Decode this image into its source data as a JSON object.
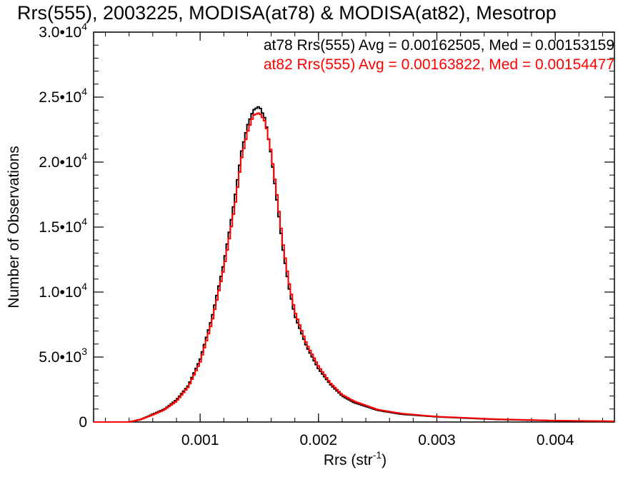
{
  "chart_data": {
    "type": "line",
    "title": "Rrs(555), 2003225, MODISA(at78) & MODISA(at82), Mesotrop",
    "xlabel": "Rrs (str",
    "xlabel_sup": "-1",
    "xlabel_close": ")",
    "ylabel": "Number of Observations",
    "xlim": [
      0.0001,
      0.0045
    ],
    "ylim": [
      0,
      30000
    ],
    "x_ticks": [
      {
        "value": 0.001,
        "label": "0.001"
      },
      {
        "value": 0.002,
        "label": "0.002"
      },
      {
        "value": 0.003,
        "label": "0.003"
      },
      {
        "value": 0.004,
        "label": "0.004"
      }
    ],
    "y_ticks": [
      {
        "value": 0,
        "mant": "0",
        "exp": ""
      },
      {
        "value": 5000,
        "mant": "5.0•10",
        "exp": "3"
      },
      {
        "value": 10000,
        "mant": "1.0•10",
        "exp": "4"
      },
      {
        "value": 15000,
        "mant": "1.5•10",
        "exp": "4"
      },
      {
        "value": 20000,
        "mant": "2.0•10",
        "exp": "4"
      },
      {
        "value": 25000,
        "mant": "2.5•10",
        "exp": "4"
      },
      {
        "value": 30000,
        "mant": "3.0•10",
        "exp": "4"
      }
    ],
    "legend_placement": "top-right",
    "series": [
      {
        "name": "at78",
        "color": "#000000",
        "legend": "at78 Rrs(555) Avg = 0.00162505, Med = 0.00153159",
        "x": [
          0.0001,
          0.0004,
          0.0005,
          0.0006,
          0.0007,
          0.0008,
          0.0009,
          0.001,
          0.0011,
          0.0012,
          0.00125,
          0.0013,
          0.00135,
          0.0014,
          0.00145,
          0.0015,
          0.00155,
          0.0016,
          0.00165,
          0.0017,
          0.00175,
          0.0018,
          0.0019,
          0.002,
          0.0021,
          0.0022,
          0.0023,
          0.0025,
          0.0027,
          0.003,
          0.0035,
          0.004,
          0.0045
        ],
        "y": [
          0,
          0,
          200,
          600,
          1000,
          1700,
          2800,
          4800,
          8000,
          12200,
          14800,
          17600,
          20800,
          22800,
          24000,
          24300,
          23300,
          20600,
          17000,
          13300,
          10400,
          8200,
          5800,
          4100,
          2900,
          2000,
          1500,
          900,
          600,
          400,
          200,
          100,
          50
        ]
      },
      {
        "name": "at82",
        "color": "#ff0000",
        "legend": "at82 Rrs(555) Avg = 0.00163822, Med = 0.00154477",
        "x": [
          0.0001,
          0.0004,
          0.0005,
          0.0006,
          0.0007,
          0.0008,
          0.0009,
          0.001,
          0.0011,
          0.0012,
          0.00125,
          0.0013,
          0.00135,
          0.0014,
          0.00145,
          0.0015,
          0.00155,
          0.0016,
          0.00165,
          0.0017,
          0.00175,
          0.0018,
          0.0019,
          0.002,
          0.0021,
          0.0022,
          0.0023,
          0.0025,
          0.0027,
          0.003,
          0.0035,
          0.004,
          0.0045
        ],
        "y": [
          0,
          0,
          200,
          550,
          950,
          1600,
          2700,
          4600,
          7700,
          11800,
          14300,
          17000,
          20300,
          22300,
          23600,
          23800,
          23100,
          20800,
          17400,
          13700,
          10800,
          8500,
          6000,
          4300,
          3000,
          2100,
          1600,
          950,
          650,
          420,
          220,
          110,
          60
        ]
      }
    ]
  }
}
